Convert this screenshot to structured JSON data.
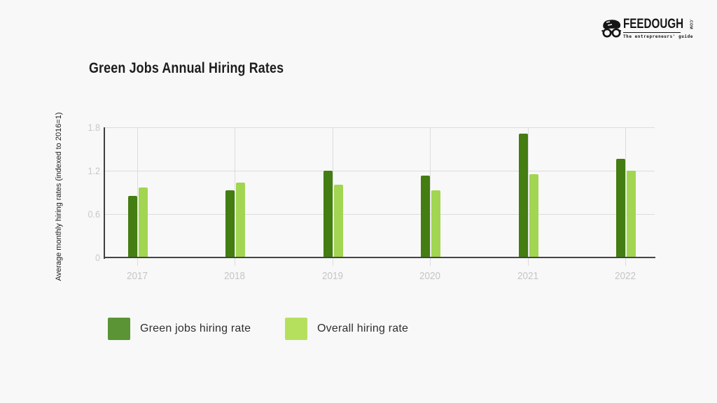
{
  "logo": {
    "brand": "FEEDOUGH",
    "tld": ".COM",
    "tagline": "The entrepreneurs' guide"
  },
  "theme": {
    "background": "#f8f8f8",
    "axis_color": "#3f3f3f",
    "grid_color": "#dcdcdc",
    "tick_label_color": "#c9c9c9",
    "title_color": "#1d1d1d"
  },
  "chart_data": {
    "type": "bar",
    "title": "Green Jobs Annual Hiring Rates",
    "ylabel": "Average monthly hiring rates (indexed to 2016=1)",
    "categories": [
      "2017",
      "2018",
      "2019",
      "2020",
      "2021",
      "2022"
    ],
    "series": [
      {
        "name": "Green jobs hiring rate",
        "color": "#447D12",
        "legend_color": "#5A9434",
        "values": [
          0.85,
          0.93,
          1.2,
          1.13,
          1.71,
          1.36
        ]
      },
      {
        "name": "Overall hiring rate",
        "color": "#A2D551",
        "legend_color": "#B5E05E",
        "values": [
          0.97,
          1.04,
          1.01,
          0.93,
          1.15,
          1.2
        ]
      }
    ],
    "yticks": [
      0,
      0.6,
      1.2,
      1.8
    ],
    "ylim": [
      0,
      1.8
    ],
    "grid": true,
    "legend_position": "bottom"
  }
}
